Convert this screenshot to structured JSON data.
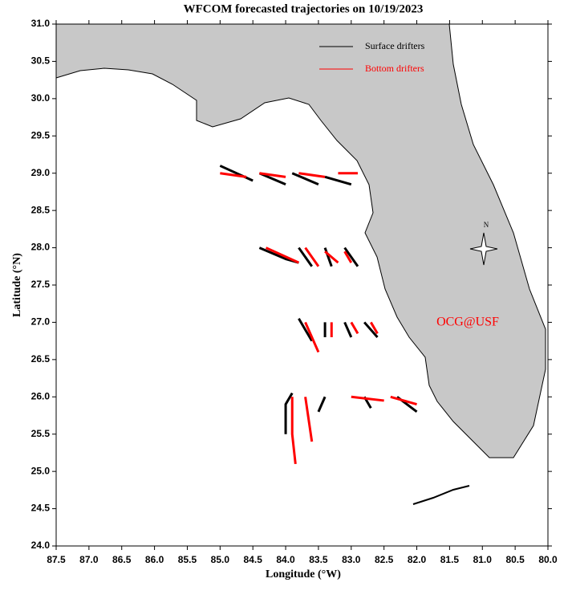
{
  "chart_data": {
    "type": "line",
    "title": "WFCOM forecasted trajectories on 10/19/2023",
    "x_label": "Longitude (°W)",
    "y_label": "Latitude (°N)",
    "annotation": "OCG@USF",
    "compass_label": "N",
    "xlim": [
      87.5,
      80.0
    ],
    "ylim": [
      24.0,
      31.0
    ],
    "xticks": [
      87.5,
      {
        "value": 87,
        "label": "87.0"
      },
      86.5,
      {
        "value": 86,
        "label": "86.0"
      },
      85.5,
      {
        "value": 85,
        "label": "85.0"
      },
      84.5,
      {
        "value": 84,
        "label": "84.0"
      },
      83.5,
      {
        "value": 83,
        "label": "83.0"
      },
      82.5,
      {
        "value": 82,
        "label": "82.0"
      },
      81.5,
      {
        "value": 81,
        "label": "81.0"
      },
      80.5,
      {
        "value": 80,
        "label": "80.0"
      }
    ],
    "yticks": [
      {
        "value": 24,
        "label": "24.0"
      },
      24.5,
      {
        "value": 25,
        "label": "25.0"
      },
      25.5,
      {
        "value": 26,
        "label": "26.0"
      },
      26.5,
      {
        "value": 27,
        "label": "27.0"
      },
      27.5,
      {
        "value": 28,
        "label": "28.0"
      },
      28.5,
      {
        "value": 29,
        "label": "29.0"
      },
      29.5,
      {
        "value": 30,
        "label": "30.0"
      },
      30.5,
      {
        "value": 31,
        "label": "31.0"
      }
    ],
    "series": [
      {
        "name": "Surface drifters",
        "color": "#000000",
        "x": [
          85.0,
          84.5,
          null,
          84.4,
          84.0,
          null,
          83.9,
          83.5,
          null,
          83.4,
          83.0,
          null,
          84.4,
          84.0,
          83.8,
          null,
          83.8,
          83.6,
          null,
          83.4,
          83.3,
          null,
          83.1,
          82.9,
          null,
          83.8,
          83.7,
          83.6,
          null,
          83.4,
          83.4,
          null,
          83.1,
          83.0,
          null,
          82.8,
          82.6,
          null,
          83.9,
          84.0,
          84.0,
          null,
          83.4,
          83.5,
          null,
          82.8,
          82.7,
          null,
          82.3,
          82.0
        ],
        "values": [
          29.1,
          28.9,
          null,
          29.0,
          28.85,
          null,
          29.0,
          28.85,
          null,
          28.95,
          28.85,
          null,
          28.0,
          27.85,
          27.8,
          null,
          28.0,
          27.75,
          null,
          28.0,
          27.75,
          null,
          28.0,
          27.75,
          null,
          27.05,
          26.9,
          26.75,
          null,
          27.0,
          26.8,
          null,
          27.0,
          26.8,
          null,
          27.0,
          26.8,
          null,
          26.05,
          25.9,
          25.5,
          null,
          26.0,
          25.8,
          null,
          26.0,
          25.85,
          null,
          26.0,
          25.8
        ]
      },
      {
        "name": "Bottom drifters",
        "color": "#ff0000",
        "x": [
          85.0,
          84.6,
          null,
          84.4,
          84.0,
          null,
          83.8,
          83.4,
          null,
          83.2,
          82.9,
          null,
          84.3,
          83.8,
          null,
          83.7,
          83.5,
          null,
          83.4,
          83.2,
          null,
          83.1,
          83.0,
          null,
          83.7,
          83.6,
          83.5,
          null,
          83.3,
          83.3,
          null,
          83.0,
          82.9,
          null,
          82.7,
          82.6,
          null,
          83.9,
          83.9,
          83.85,
          null,
          83.7,
          83.6,
          null,
          83.0,
          82.5,
          null,
          82.4,
          82.0
        ],
        "values": [
          29.0,
          28.95,
          null,
          29.0,
          28.95,
          null,
          29.0,
          28.95,
          null,
          29.0,
          29.0,
          null,
          28.0,
          27.8,
          null,
          28.0,
          27.75,
          null,
          27.95,
          27.8,
          null,
          27.95,
          27.8,
          null,
          27.0,
          26.8,
          26.6,
          null,
          27.0,
          26.8,
          null,
          27.0,
          26.85,
          null,
          27.0,
          26.85,
          null,
          26.0,
          25.5,
          25.1,
          null,
          26.0,
          25.4,
          null,
          26.0,
          25.95,
          null,
          26.0,
          25.9
        ]
      }
    ]
  }
}
